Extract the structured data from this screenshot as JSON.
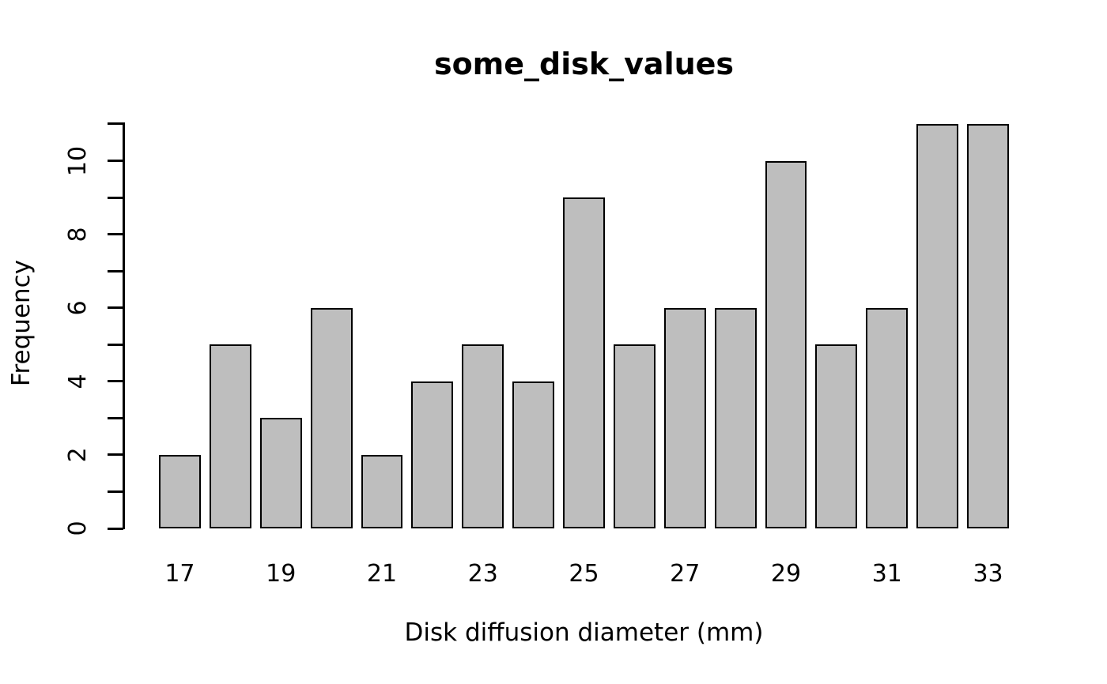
{
  "chart_data": {
    "type": "bar",
    "title": "some_disk_values",
    "xlabel": "Disk diffusion diameter (mm)",
    "ylabel": "Frequency",
    "categories": [
      17,
      18,
      19,
      20,
      21,
      22,
      23,
      24,
      25,
      26,
      27,
      28,
      29,
      30,
      31,
      32,
      33
    ],
    "values": [
      2,
      5,
      3,
      6,
      2,
      4,
      5,
      4,
      9,
      5,
      6,
      6,
      10,
      5,
      6,
      11,
      11
    ],
    "ylim": [
      0,
      11
    ],
    "y_ticks": [
      {
        "value": 0,
        "label": "0"
      },
      {
        "value": 1,
        "label": ""
      },
      {
        "value": 2,
        "label": "2"
      },
      {
        "value": 3,
        "label": ""
      },
      {
        "value": 4,
        "label": "4"
      },
      {
        "value": 5,
        "label": ""
      },
      {
        "value": 6,
        "label": "6"
      },
      {
        "value": 7,
        "label": ""
      },
      {
        "value": 8,
        "label": "8"
      },
      {
        "value": 9,
        "label": ""
      },
      {
        "value": 10,
        "label": "10"
      },
      {
        "value": 11,
        "label": ""
      }
    ],
    "x_ticks": [
      {
        "at": 17,
        "label": "17"
      },
      {
        "at": 19,
        "label": "19"
      },
      {
        "at": 21,
        "label": "21"
      },
      {
        "at": 23,
        "label": "23"
      },
      {
        "at": 25,
        "label": "25"
      },
      {
        "at": 27,
        "label": "27"
      },
      {
        "at": 29,
        "label": "29"
      },
      {
        "at": 31,
        "label": "31"
      },
      {
        "at": 33,
        "label": "33"
      }
    ],
    "grid": false,
    "legend_position": "none",
    "bar_fill_color": "#bebebe",
    "bar_border_color": "#000000",
    "axis_color": "#000000",
    "background_color": "#ffffff"
  }
}
